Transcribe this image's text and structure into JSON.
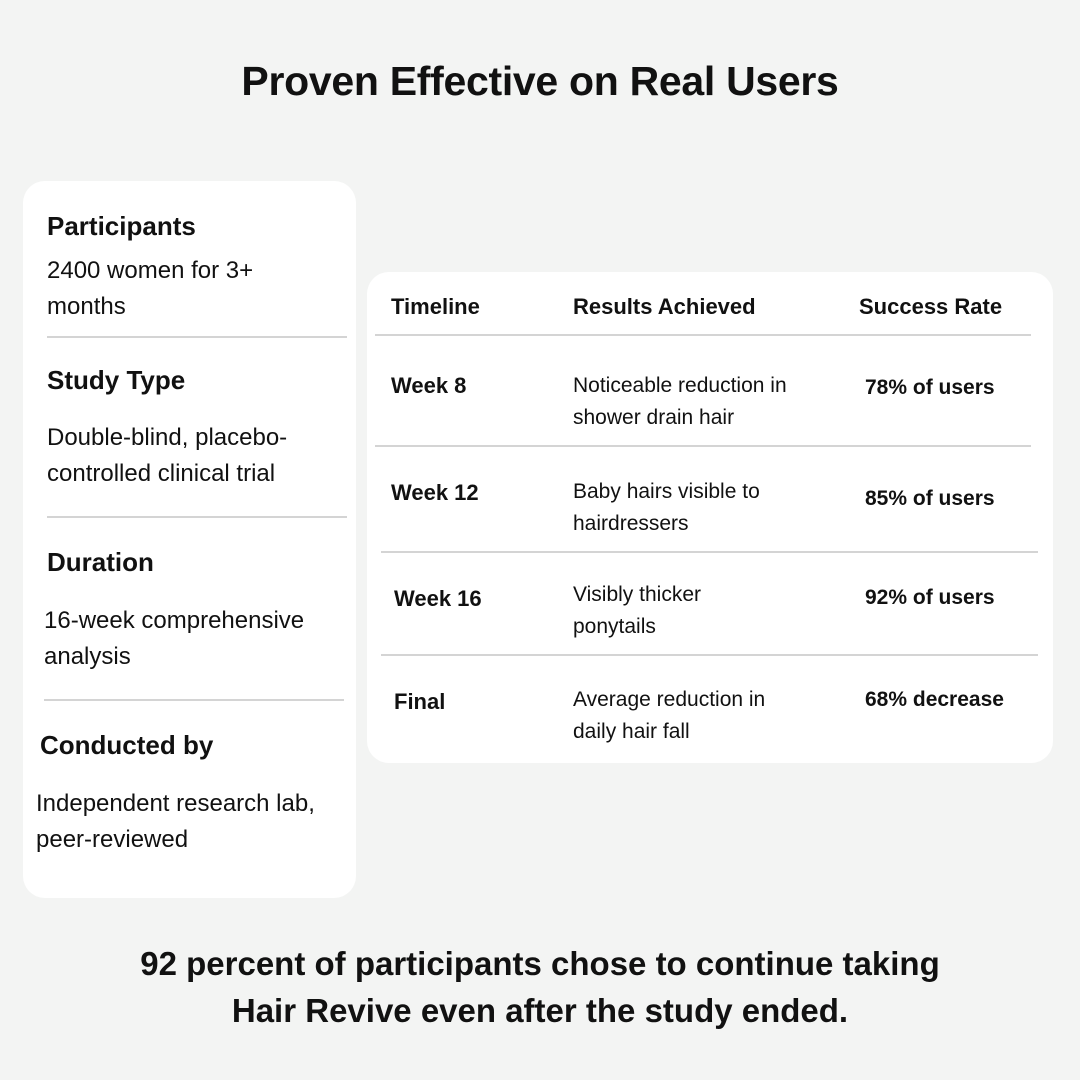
{
  "title": "Proven Effective on Real Users",
  "study": [
    {
      "heading": "Participants",
      "text": "2400 women for 3+ months"
    },
    {
      "heading": "Study Type",
      "text": "Double-blind, placebo-controlled clinical trial"
    },
    {
      "heading": "Duration",
      "text": "16-week comprehensive analysis"
    },
    {
      "heading": "Conducted by",
      "text": "Independent research lab, peer-reviewed"
    }
  ],
  "table": {
    "headers": [
      "Timeline",
      "Results Achieved",
      "Success Rate"
    ],
    "rows": [
      {
        "timeline": "Week 8",
        "result": "Noticeable reduction in shower drain hair",
        "rate": "78% of users"
      },
      {
        "timeline": "Week 12",
        "result": "Baby hairs visible to hairdressers",
        "rate": "85% of users"
      },
      {
        "timeline": "Week 16",
        "result": "Visibly thicker ponytails",
        "rate": "92% of users"
      },
      {
        "timeline": "Final",
        "result": "Average reduction in daily hair fall",
        "rate": "68% decrease"
      }
    ]
  },
  "footer": {
    "line1": "92 percent of participants chose to continue taking",
    "line2": "Hair Revive even after the study ended."
  },
  "colors": {
    "background": "#f3f4f3",
    "card": "#ffffff",
    "divider": "#d4d4d4",
    "text": "#111111"
  }
}
